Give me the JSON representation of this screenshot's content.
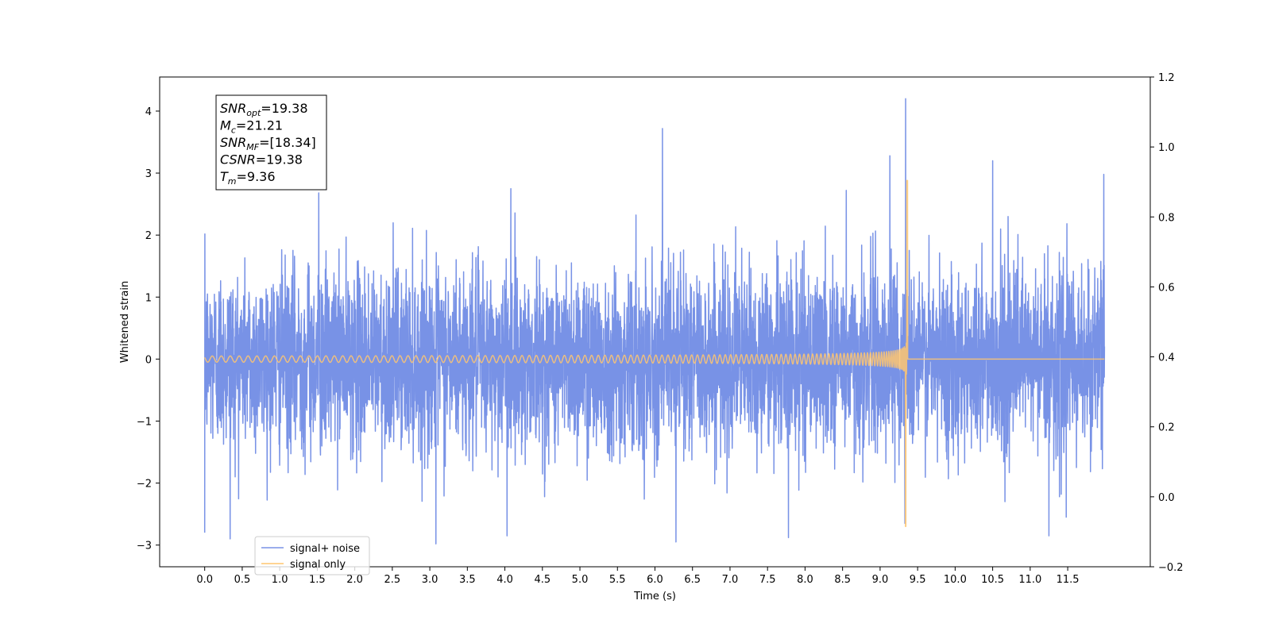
{
  "chart_data": {
    "type": "line",
    "xlabel": "Time (s)",
    "ylabel": "Whitened strain",
    "xlim": [
      -0.6,
      12.6
    ],
    "ylim": [
      -3.35,
      4.55
    ],
    "y2lim": [
      -0.2,
      1.2
    ],
    "grid": false,
    "legend_placement": "lower-left",
    "x_ticks": [
      "0.0",
      "0.5",
      "1.0",
      "1.5",
      "2.0",
      "2.5",
      "3.0",
      "3.5",
      "4.0",
      "4.5",
      "5.0",
      "5.5",
      "6.0",
      "6.5",
      "7.0",
      "7.5",
      "8.0",
      "8.5",
      "9.0",
      "9.5",
      "10.0",
      "10.5",
      "11.0",
      "11.5"
    ],
    "y_ticks": [
      "−3",
      "−2",
      "−1",
      "0",
      "1",
      "2",
      "3",
      "4"
    ],
    "y2_ticks": [
      "−0.2",
      "0.0",
      "0.2",
      "0.4",
      "0.6",
      "0.8",
      "1.0",
      "1.2"
    ],
    "annotations": [
      {
        "main": "SNR",
        "sub": "opt",
        "rest": "=19.38"
      },
      {
        "main": "M",
        "sub": "c",
        "rest": "=21.21"
      },
      {
        "main": "SNR",
        "sub": "MF",
        "rest": "=[18.34]"
      },
      {
        "main": "CSNR",
        "sub": "",
        "rest": "=19.38"
      },
      {
        "main": "T",
        "sub": "m",
        "rest": "=9.36"
      }
    ],
    "series": [
      {
        "name": "signal+ noise",
        "color": "#7892e6",
        "t_start": 0.0,
        "t_end": 11.99,
        "noise_sigma": 0.72,
        "spikes": [
          {
            "t": 0.0,
            "y": -2.8
          },
          {
            "t": 0.34,
            "y": -2.9
          },
          {
            "t": 1.52,
            "y": 2.68
          },
          {
            "t": 3.08,
            "y": -2.98
          },
          {
            "t": 4.08,
            "y": 2.75
          },
          {
            "t": 4.03,
            "y": -2.85
          },
          {
            "t": 6.1,
            "y": 3.72
          },
          {
            "t": 6.28,
            "y": -2.95
          },
          {
            "t": 7.78,
            "y": -2.88
          },
          {
            "t": 8.55,
            "y": 2.72
          },
          {
            "t": 9.13,
            "y": 3.28
          },
          {
            "t": 9.34,
            "y": 4.2
          },
          {
            "t": 9.33,
            "y": -2.65
          },
          {
            "t": 10.5,
            "y": 3.2
          },
          {
            "t": 11.25,
            "y": -2.85
          },
          {
            "t": 11.48,
            "y": -2.55
          },
          {
            "t": 11.98,
            "y": 2.98
          }
        ]
      },
      {
        "name": "signal only",
        "color": "#ffc66e",
        "t_start": 0.0,
        "t_end": 11.99,
        "merger_time": 9.36,
        "peak_amplitude": 2.88,
        "trough_amplitude": -2.7,
        "early_amplitude": 0.05
      }
    ]
  }
}
